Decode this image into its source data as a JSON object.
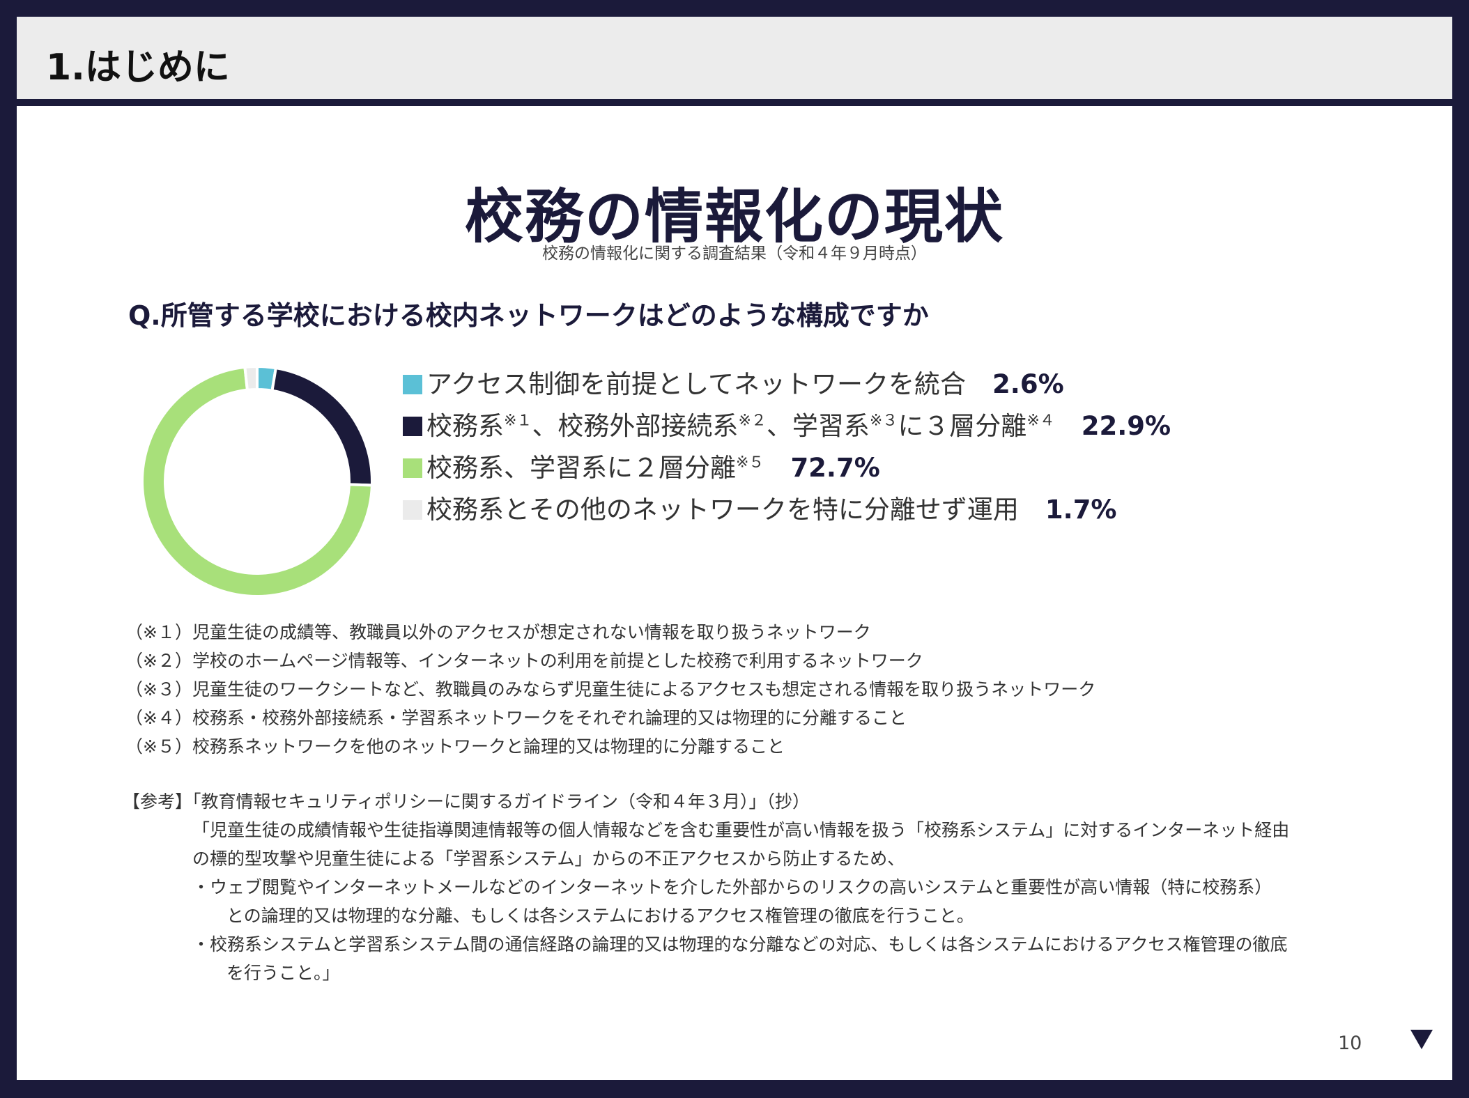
{
  "header": {
    "title": "1.はじめに"
  },
  "main": {
    "title": "校務の情報化の現状",
    "subtitle": "校務の情報化に関する調査結果（令和４年９月時点）",
    "question": "Q.所管する学校における校内ネットワークはどのような構成ですか"
  },
  "chart_data": {
    "type": "pie",
    "donut": true,
    "legend_position": "right",
    "slices": [
      {
        "label": "アクセス制御を前提としてネットワークを統合",
        "sup": "",
        "value": 2.6,
        "value_text": "2.6%",
        "color": "#5bc0d6"
      },
      {
        "label": "校務系※１、校務外部接続系※２、学習系※３に３層分離※４",
        "label_parts": [
          "校務系",
          "※１",
          "、校務外部接続系",
          "※２",
          "、学習系",
          "※３",
          "に３層分離",
          "※４"
        ],
        "value": 22.9,
        "value_text": "22.9%",
        "color": "#1b1a3a"
      },
      {
        "label": "校務系、学習系に２層分離※５",
        "label_parts": [
          "校務系、学習系に２層分離",
          "※５"
        ],
        "value": 72.7,
        "value_text": "72.7%",
        "color": "#a8e07a"
      },
      {
        "label": "校務系とその他のネットワークを特に分離せず運用",
        "sup": "",
        "value": 1.7,
        "value_text": "1.7%",
        "color": "#ebebeb"
      }
    ]
  },
  "notes": [
    "（※１）児童生徒の成績等、教職員以外のアクセスが想定されない情報を取り扱うネットワーク",
    "（※２）学校のホームページ情報等、インターネットの利用を前提とした校務で利用するネットワーク",
    "（※３）児童生徒のワークシートなど、教職員のみならず児童生徒によるアクセスも想定される情報を取り扱うネットワーク",
    "（※４）校務系・校務外部接続系・学習系ネットワークをそれぞれ論理的又は物理的に分離すること",
    "（※５）校務系ネットワークを他のネットワークと論理的又は物理的に分離すること"
  ],
  "reference": {
    "label": "【参考】",
    "head": "「教育情報セキュリティポリシーに関するガイドライン（令和４年３月）」（抄）",
    "lines": [
      "「児童生徒の成績情報や生徒指導関連情報等の個人情報などを含む重要性が高い情報を扱う「校務系システム」に対するインターネット経由",
      "の標的型攻撃や児童生徒による「学習系システム」からの不正アクセスから防止するため、",
      "・ウェブ閲覧やインターネットメールなどのインターネットを介した外部からのリスクの高いシステムと重要性が高い情報（特に校務系）",
      "　との論理的又は物理的な分離、もしくは各システムにおけるアクセス権管理の徹底を行うこと。",
      "・校務系システムと学習系システム間の通信経路の論理的又は物理的な分離などの対応、もしくは各システムにおけるアクセス権管理の徹底",
      "　を行うこと。」"
    ]
  },
  "footer": {
    "page_number": "10",
    "next_icon": "triangle-down-icon"
  }
}
